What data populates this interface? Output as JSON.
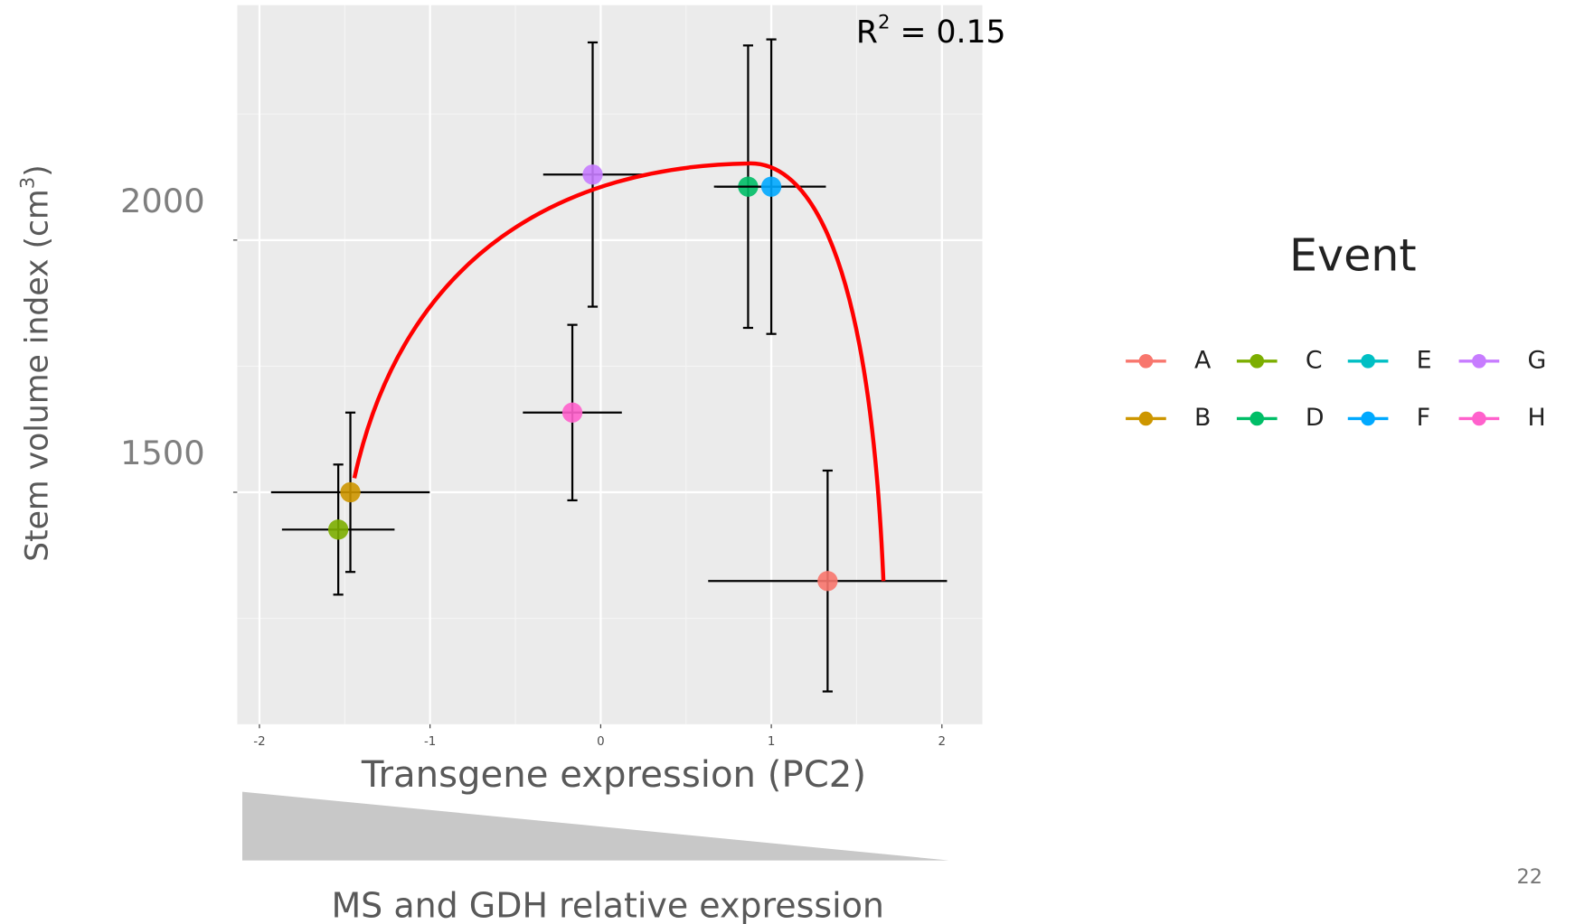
{
  "chart_data": {
    "type": "scatter",
    "xlabel": "Transgene expression (PC2)",
    "ylabel": {
      "text": "Stem volume index (cm",
      "sup": "3",
      "end": ")"
    },
    "annotation": {
      "text": "R",
      "sup": "2",
      "end": " = 0.15"
    },
    "legend_title": "Event",
    "gradient_label": "MS and GDH relative expression",
    "page_number": "22",
    "xlim": [
      -2.13,
      2.237
    ],
    "ylim": [
      1040,
      2466
    ],
    "xticks": [
      -2,
      -1,
      0,
      1,
      2
    ],
    "yticks": [
      1500,
      2000
    ],
    "xminor": [
      -1.5,
      -0.5,
      0.5,
      1.5
    ],
    "yminor": [
      1250,
      1750,
      2250
    ],
    "grid": true,
    "series": [
      {
        "name": "A",
        "color": "#F8766D",
        "x": [
          1.33
        ],
        "values": [
          1324
        ],
        "xerr": [
          0.7
        ],
        "yerr": [
          219
        ]
      },
      {
        "name": "B",
        "color": "#CD9600",
        "x": [
          -1.467
        ],
        "values": [
          1500
        ],
        "xerr": [
          0.465
        ],
        "yerr": [
          158
        ]
      },
      {
        "name": "C",
        "color": "#7CAE00",
        "x": [
          -1.538
        ],
        "values": [
          1426
        ],
        "xerr": [
          0.33
        ],
        "yerr": [
          129
        ]
      },
      {
        "name": "D",
        "color": "#00BE67",
        "x": [
          0.864
        ],
        "values": [
          2106
        ],
        "xerr": [
          0.2
        ],
        "yerr": [
          280
        ]
      },
      {
        "name": "E",
        "color": "#00BFC4",
        "x": [],
        "values": [],
        "xerr": [],
        "yerr": []
      },
      {
        "name": "F",
        "color": "#00A9FF",
        "x": [
          1.0
        ],
        "values": [
          2106
        ],
        "xerr": [
          0.32
        ],
        "yerr": [
          292
        ]
      },
      {
        "name": "G",
        "color": "#C77CFF",
        "x": [
          -0.047
        ],
        "values": [
          2130
        ],
        "xerr": [
          0.29
        ],
        "yerr": [
          262
        ]
      },
      {
        "name": "H",
        "color": "#FF61CC",
        "x": [
          -0.166
        ],
        "values": [
          1658
        ],
        "xerr": [
          0.29
        ],
        "yerr": [
          174
        ]
      }
    ]
  }
}
